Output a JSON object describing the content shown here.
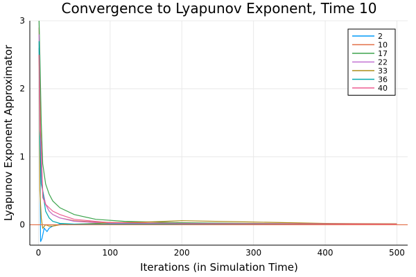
{
  "chart_data": {
    "type": "line",
    "title": "Convergence to Lyapunov Exponent, Time 10",
    "xlabel": "Iterations (in Simulation Time)",
    "ylabel": "Lyapunov Exponent Approximator",
    "xlim": [
      -12,
      515
    ],
    "ylim": [
      -0.3,
      3
    ],
    "xticks": [
      0,
      100,
      200,
      300,
      400,
      500
    ],
    "yticks": [
      0,
      1,
      2,
      3
    ],
    "grid": true,
    "legend_position": "top-right",
    "reference_line": {
      "y": 0,
      "color": "#e26f46"
    },
    "series": [
      {
        "name": "2",
        "color": "#009af9",
        "x": [
          1,
          3,
          5,
          8,
          12,
          15,
          20,
          30,
          40,
          60,
          100,
          200,
          500
        ],
        "y": [
          2.6,
          -0.25,
          -0.2,
          -0.05,
          -0.1,
          -0.05,
          -0.02,
          0.01,
          0.0,
          0.01,
          0.01,
          0.005,
          0.005
        ]
      },
      {
        "name": "10",
        "color": "#e26f46",
        "x": [
          1,
          2,
          4,
          6,
          10,
          15,
          20,
          30,
          50,
          80,
          120,
          200,
          500
        ],
        "y": [
          2.9,
          2.0,
          1.0,
          0.5,
          0.3,
          0.2,
          0.15,
          0.1,
          0.06,
          0.04,
          0.03,
          0.02,
          0.01
        ]
      },
      {
        "name": "17",
        "color": "#3da44d",
        "x": [
          1,
          2,
          4,
          6,
          10,
          15,
          20,
          30,
          50,
          80,
          120,
          200,
          300,
          500
        ],
        "y": [
          3.0,
          2.5,
          1.5,
          0.9,
          0.6,
          0.45,
          0.35,
          0.25,
          0.15,
          0.08,
          0.05,
          0.03,
          0.02,
          0.01
        ]
      },
      {
        "name": "22",
        "color": "#c271d2",
        "x": [
          1,
          2,
          4,
          6,
          10,
          15,
          20,
          30,
          50,
          100,
          200,
          500
        ],
        "y": [
          2.8,
          1.6,
          0.8,
          0.5,
          0.3,
          0.2,
          0.15,
          0.1,
          0.05,
          0.02,
          0.01,
          0.005
        ]
      },
      {
        "name": "33",
        "color": "#ac8d18",
        "x": [
          1,
          2,
          4,
          6,
          10,
          15,
          20,
          30,
          50,
          80,
          100,
          150,
          200,
          300,
          400,
          500
        ],
        "y": [
          2.5,
          0.5,
          0.1,
          -0.05,
          0.0,
          -0.02,
          -0.02,
          0.0,
          0.01,
          0.02,
          0.03,
          0.04,
          0.06,
          0.04,
          0.02,
          0.015
        ]
      },
      {
        "name": "36",
        "color": "#00a9ad",
        "x": [
          1,
          2,
          4,
          6,
          10,
          15,
          20,
          30,
          50,
          100,
          200,
          500
        ],
        "y": [
          2.7,
          1.2,
          0.6,
          0.5,
          0.2,
          0.1,
          0.05,
          0.02,
          0.01,
          0.01,
          0.01,
          0.005
        ]
      },
      {
        "name": "40",
        "color": "#ed5d92",
        "x": [
          1,
          2,
          4,
          6,
          10,
          15,
          20,
          30,
          50,
          100,
          200,
          500
        ],
        "y": [
          2.5,
          1.4,
          1.2,
          0.4,
          0.3,
          0.25,
          0.2,
          0.15,
          0.08,
          0.03,
          0.02,
          0.01
        ]
      }
    ]
  }
}
